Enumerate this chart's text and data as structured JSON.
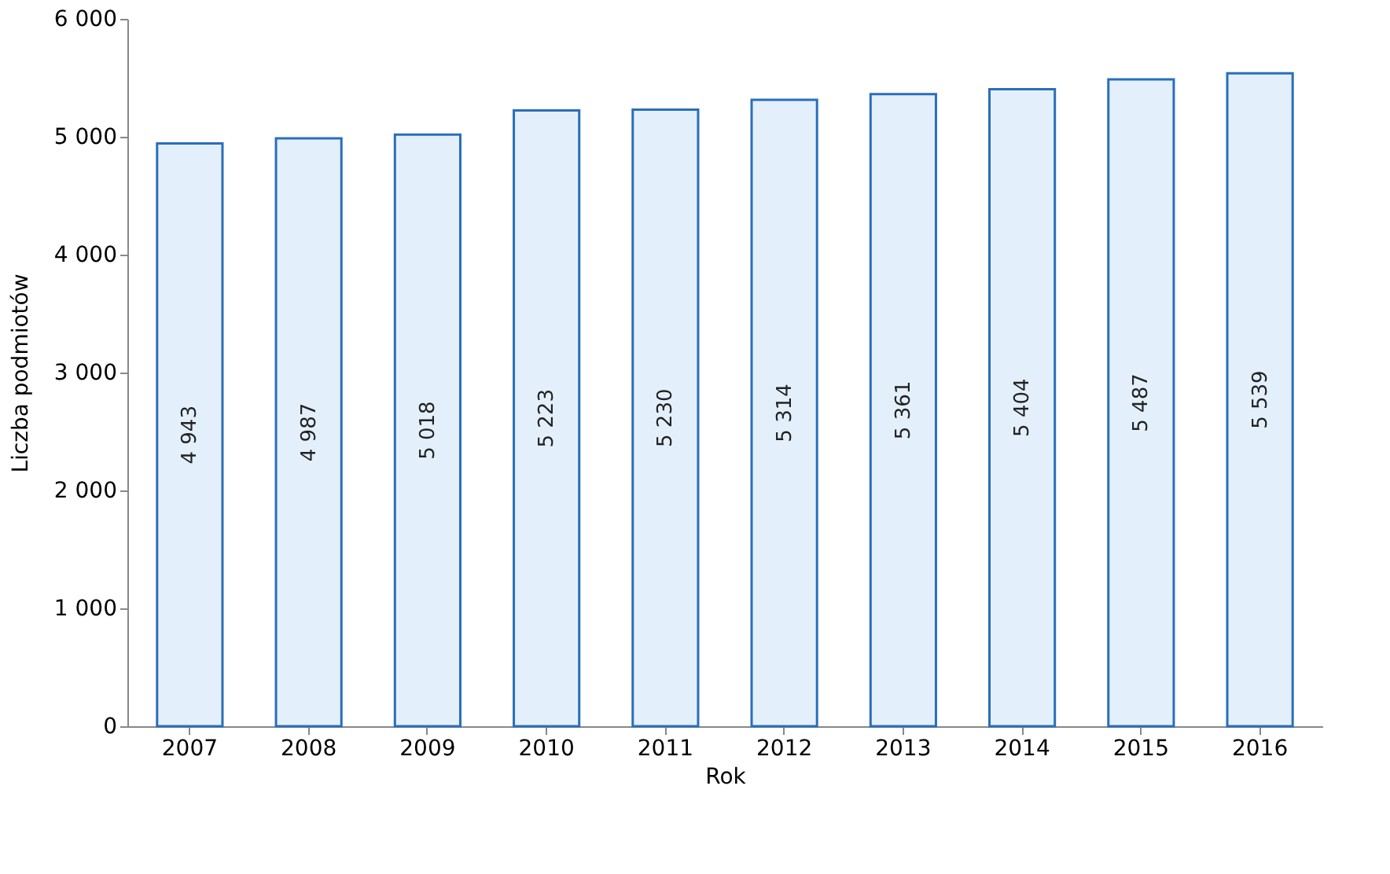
{
  "chart_data": {
    "type": "bar",
    "xlabel": "Rok",
    "ylabel": "Liczba podmiotów",
    "categories": [
      "2007",
      "2008",
      "2009",
      "2010",
      "2011",
      "2012",
      "2013",
      "2014",
      "2015",
      "2016"
    ],
    "values": [
      4943,
      4987,
      5018,
      5223,
      5230,
      5314,
      5361,
      5404,
      5487,
      5539
    ],
    "color": "#e3f0fb",
    "ylim": [
      0,
      6000
    ],
    "yticks": [
      0,
      1000,
      2000,
      3000,
      4000,
      5000,
      6000
    ],
    "data_labels": true,
    "grid": false
  }
}
